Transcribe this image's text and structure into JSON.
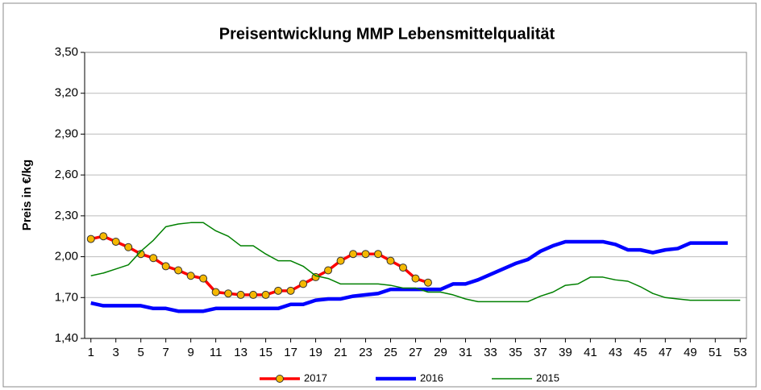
{
  "chart_data": {
    "type": "line",
    "title": "Preisentwicklung MMP Lebensmittelqualität",
    "y_label": "Preis in €/kg",
    "x": [
      1,
      2,
      3,
      4,
      5,
      6,
      7,
      8,
      9,
      10,
      11,
      12,
      13,
      14,
      15,
      16,
      17,
      18,
      19,
      20,
      21,
      22,
      23,
      24,
      25,
      26,
      27,
      28,
      29,
      30,
      31,
      32,
      33,
      34,
      35,
      36,
      37,
      38,
      39,
      40,
      41,
      42,
      43,
      44,
      45,
      46,
      47,
      48,
      49,
      50,
      51,
      52,
      53
    ],
    "xlim": [
      0.5,
      53.5
    ],
    "xticks": [
      1,
      3,
      5,
      7,
      9,
      11,
      13,
      15,
      17,
      19,
      21,
      23,
      25,
      27,
      29,
      31,
      33,
      35,
      37,
      39,
      41,
      43,
      45,
      47,
      49,
      51,
      53
    ],
    "ylim": [
      1.4,
      3.5
    ],
    "yticks": [
      {
        "value": 1.4,
        "label": "1,40"
      },
      {
        "value": 1.7,
        "label": "1,70"
      },
      {
        "value": 2.0,
        "label": "2,00"
      },
      {
        "value": 2.3,
        "label": "2,30"
      },
      {
        "value": 2.6,
        "label": "2,60"
      },
      {
        "value": 2.9,
        "label": "2,90"
      },
      {
        "value": 3.2,
        "label": "3,20"
      },
      {
        "value": 3.5,
        "label": "3,50"
      }
    ],
    "grid": true,
    "legend": "bottom",
    "series": [
      {
        "name": "2017",
        "color": "#ff0000",
        "marker": "#f5b800",
        "values": [
          2.13,
          2.15,
          2.11,
          2.07,
          2.02,
          1.99,
          1.93,
          1.9,
          1.86,
          1.84,
          1.74,
          1.73,
          1.72,
          1.72,
          1.72,
          1.75,
          1.75,
          1.8,
          1.85,
          1.9,
          1.97,
          2.02,
          2.02,
          2.02,
          1.97,
          1.92,
          1.84,
          1.81,
          null,
          null,
          null,
          null,
          null,
          null,
          null,
          null,
          null,
          null,
          null,
          null,
          null,
          null,
          null,
          null,
          null,
          null,
          null,
          null,
          null,
          null,
          null,
          null,
          null
        ]
      },
      {
        "name": "2016",
        "color": "#0000ff",
        "values": [
          1.66,
          1.64,
          1.64,
          1.64,
          1.64,
          1.62,
          1.62,
          1.6,
          1.6,
          1.6,
          1.62,
          1.62,
          1.62,
          1.62,
          1.62,
          1.62,
          1.65,
          1.65,
          1.68,
          1.69,
          1.69,
          1.71,
          1.72,
          1.73,
          1.76,
          1.76,
          1.76,
          1.76,
          1.76,
          1.8,
          1.8,
          1.83,
          1.87,
          1.91,
          1.95,
          1.98,
          2.04,
          2.08,
          2.11,
          2.11,
          2.11,
          2.11,
          2.09,
          2.05,
          2.05,
          2.03,
          2.05,
          2.06,
          2.1,
          2.1,
          2.1,
          2.1,
          null
        ]
      },
      {
        "name": "2015",
        "color": "#008000",
        "values": [
          1.86,
          1.88,
          1.91,
          1.94,
          2.04,
          2.12,
          2.22,
          2.24,
          2.25,
          2.25,
          2.19,
          2.15,
          2.08,
          2.08,
          2.02,
          1.97,
          1.97,
          1.93,
          1.86,
          1.84,
          1.8,
          1.8,
          1.8,
          1.8,
          1.79,
          1.77,
          1.77,
          1.74,
          1.74,
          1.72,
          1.69,
          1.67,
          1.67,
          1.67,
          1.67,
          1.67,
          1.71,
          1.74,
          1.79,
          1.8,
          1.85,
          1.85,
          1.83,
          1.82,
          1.78,
          1.73,
          1.7,
          1.69,
          1.68,
          1.68,
          1.68,
          1.68,
          1.68
        ]
      }
    ]
  }
}
